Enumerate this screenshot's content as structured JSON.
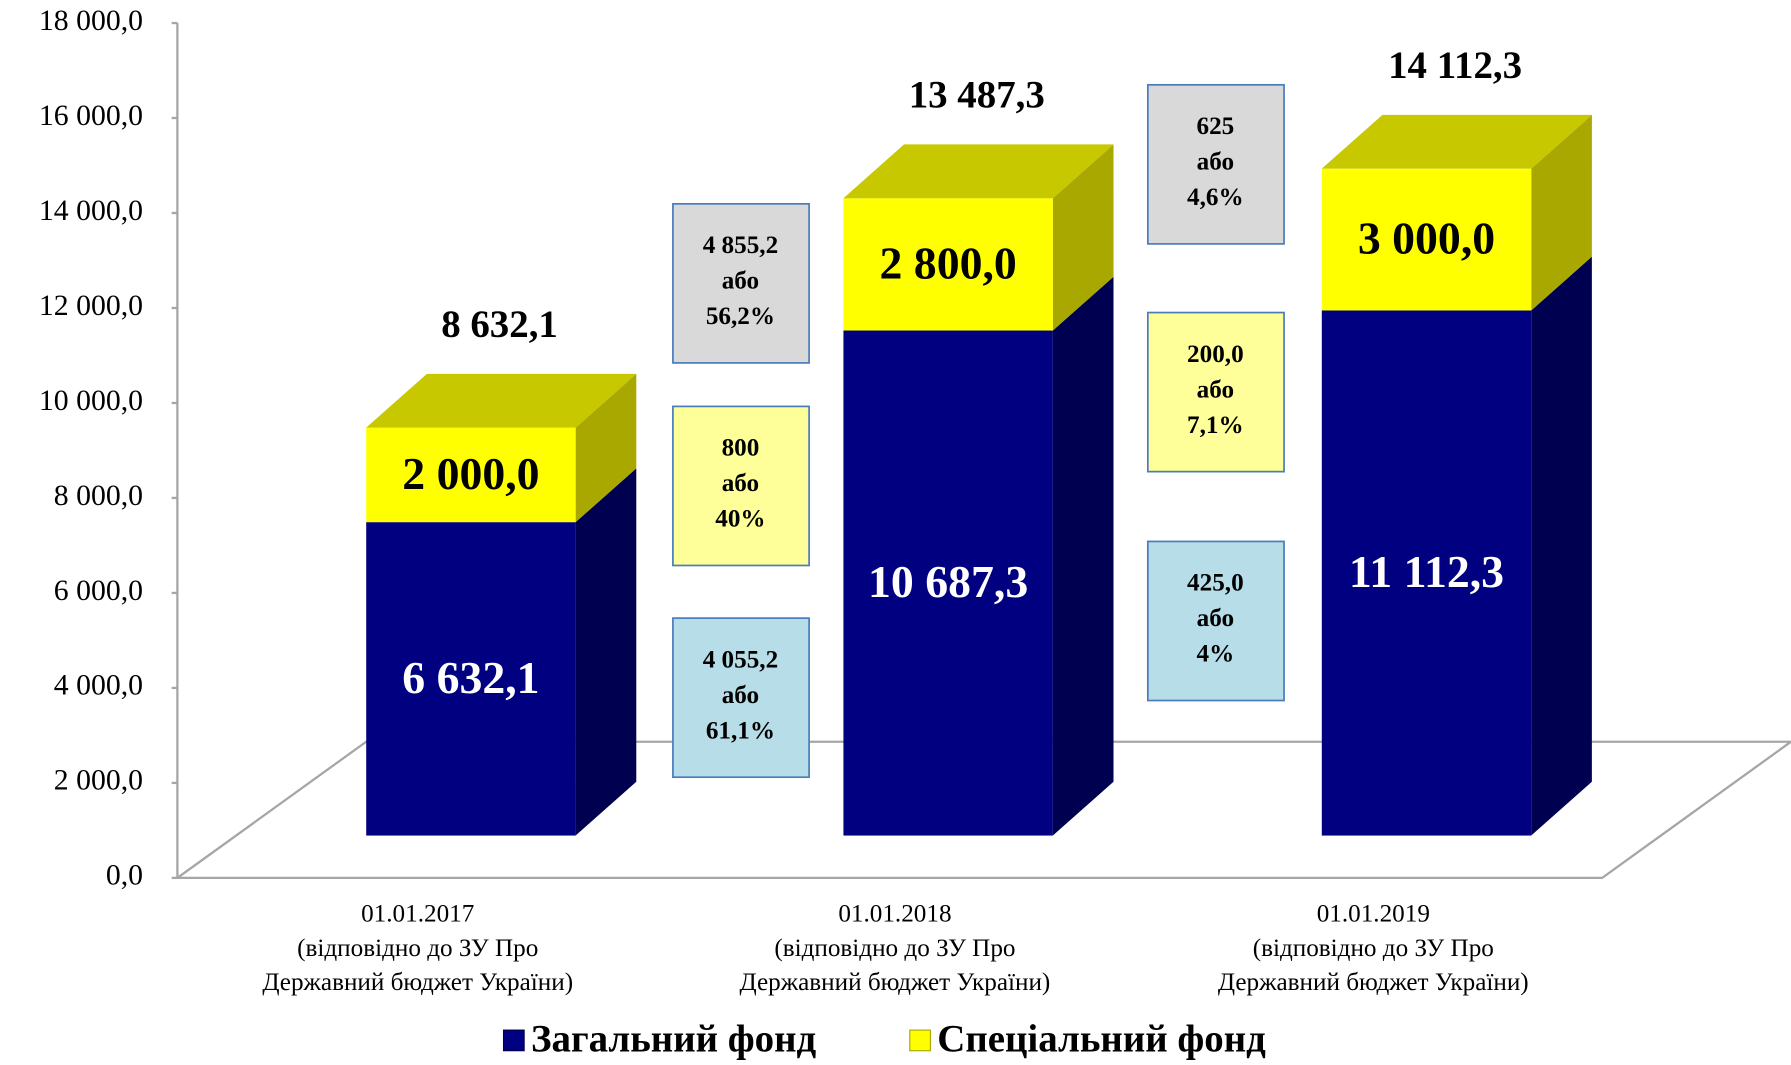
{
  "chart_data": {
    "type": "bar3d_stacked",
    "categories": [
      [
        "01.01.2017",
        "(відповідно до ЗУ Про",
        "Державний бюджет України)"
      ],
      [
        "01.01.2018",
        "(відповідно до ЗУ Про",
        "Державний бюджет України)"
      ],
      [
        "01.01.2019",
        "(відповідно до ЗУ Про",
        "Державний бюджет України)"
      ]
    ],
    "series": [
      {
        "name": "Загальний фонд",
        "color": "#000080",
        "values": [
          6632.1,
          10687.3,
          11112.3
        ],
        "value_labels": [
          "6 632,1",
          "10 687,3",
          "11 112,3"
        ]
      },
      {
        "name": "Спеціальний фонд",
        "color": "#ffff00",
        "values": [
          2000.0,
          2800.0,
          3000.0
        ],
        "value_labels": [
          "2 000,0",
          "2 800,0",
          "3 000,0"
        ]
      }
    ],
    "totals": {
      "values": [
        8632.1,
        13487.3,
        14112.3
      ],
      "value_labels": [
        "8 632,1",
        "13 487,3",
        "14 112,3"
      ]
    },
    "annotations": [
      {
        "lines": [
          "4 855,2",
          "або",
          "56,2%"
        ],
        "color": "#d9d9d9"
      },
      {
        "lines": [
          "800",
          "або",
          "40%"
        ],
        "color": "#ffff99"
      },
      {
        "lines": [
          "4 055,2",
          "або",
          "61,1%"
        ],
        "color": "#b7dde8"
      },
      {
        "lines": [
          "625",
          "або",
          "4,6%"
        ],
        "color": "#d9d9d9"
      },
      {
        "lines": [
          "200,0",
          "або",
          "7,1%"
        ],
        "color": "#ffff99"
      },
      {
        "lines": [
          "425,0",
          "або",
          "4%"
        ],
        "color": "#b7dde8"
      }
    ],
    "ylim": [
      0,
      18000
    ],
    "yticks": [
      {
        "value": 0,
        "label": "0,0"
      },
      {
        "value": 2000,
        "label": "2 000,0"
      },
      {
        "value": 4000,
        "label": "4 000,0"
      },
      {
        "value": 6000,
        "label": "6 000,0"
      },
      {
        "value": 8000,
        "label": "8 000,0"
      },
      {
        "value": 10000,
        "label": "10 000,0"
      },
      {
        "value": 12000,
        "label": "12 000,0"
      },
      {
        "value": 14000,
        "label": "14 000,0"
      },
      {
        "value": 16000,
        "label": "16 000,0"
      },
      {
        "value": 18000,
        "label": "18 000,0"
      }
    ],
    "legend": "bottom"
  }
}
